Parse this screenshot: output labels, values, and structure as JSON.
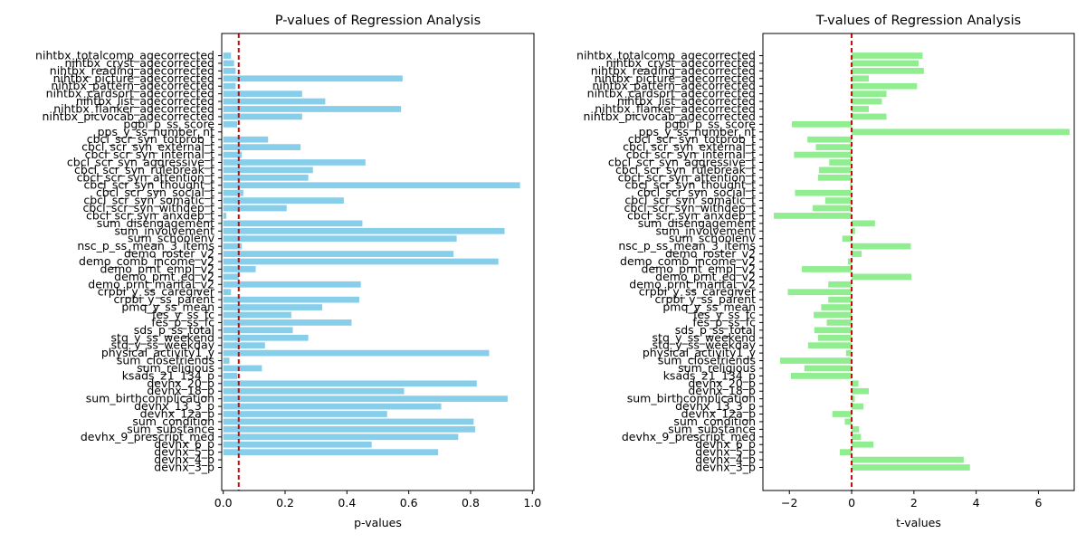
{
  "chart_data": [
    {
      "type": "bar",
      "orientation": "horizontal",
      "title": "P-values of Regression Analysis",
      "xlabel": "p-values",
      "ylabel": "",
      "xlim": [
        0.0,
        1.0
      ],
      "xticks": [
        "0.0",
        "0.2",
        "0.4",
        "0.6",
        "0.8",
        "1.0"
      ],
      "bar_color": "#87ceeb",
      "reference_line": {
        "value": 0.05,
        "color": "#dd0000",
        "style": "dashed"
      },
      "categories": [
        "nihtbx_totalcomp_agecorrected",
        "nihtbx_cryst_agecorrected",
        "nihtbx_reading_agecorrected",
        "nihtbx_picture_agecorrected",
        "nihtbx_pattern_agecorrected",
        "nihtbx_cardsort_agecorrected",
        "nihtbx_list_agecorrected",
        "nihtbx_flanker_agecorrected",
        "nihtbx_picvocab_agecorrected",
        "pgbi_p_ss_score",
        "pps_y_ss_number_nt",
        "cbcl_scr_syn_totprob_t",
        "cbcl_scr_syn_external_t",
        "cbcl_scr_syn_internal_t",
        "cbcl_scr_syn_aggressive_t",
        "cbcl_scr_syn_rulebreak_t",
        "cbcl_scr_syn_attention_t",
        "cbcl_scr_syn_thought_t",
        "cbcl_scr_syn_social_t",
        "cbcl_scr_syn_somatic_t",
        "cbcl_scr_syn_withdep_t",
        "cbcl_scr_syn_anxdep_t",
        "sum_disengagement",
        "sum_involvement",
        "sum_schoolenv",
        "nsc_p_ss_mean_3_items",
        "demo_roster_v2",
        "demo_comb_income_v2",
        "demo_prnt_empl_v2",
        "demo_prnt_ed_v2",
        "demo_prnt_marital_v2",
        "crpbi_y_ss_caregiver",
        "crpbi_y_ss_parent",
        "pmq_y_ss_mean",
        "fes_y_ss_fc",
        "fes_p_ss_fc",
        "sds_p_ss_total",
        "stq_y_ss_weekend",
        "stq_y_ss_weekday",
        "physical_activity1_y",
        "sum_closefriends",
        "sum_religious",
        "ksads_21_134_p",
        "devhx_20_p",
        "devhx_18_p",
        "sum_birthcomplication",
        "devhx_13_3_p",
        "devhx_12a_p",
        "sum_condition",
        "sum_substance",
        "devhx_9_prescript_med",
        "devhx_6_p",
        "devhx_5_p",
        "devhx_4_p",
        "devhx_3_p"
      ],
      "values": [
        0.025,
        0.035,
        0.04,
        0.58,
        0.04,
        0.255,
        0.33,
        0.575,
        0.255,
        0.045,
        0.0,
        0.145,
        0.25,
        0.06,
        0.46,
        0.29,
        0.275,
        0.96,
        0.065,
        0.39,
        0.205,
        0.01,
        0.45,
        0.91,
        0.755,
        0.06,
        0.745,
        0.89,
        0.105,
        0.05,
        0.445,
        0.025,
        0.44,
        0.32,
        0.22,
        0.415,
        0.225,
        0.275,
        0.135,
        0.86,
        0.02,
        0.125,
        0.045,
        0.82,
        0.585,
        0.92,
        0.705,
        0.53,
        0.81,
        0.815,
        0.76,
        0.48,
        0.695,
        0.0,
        0.0
      ]
    },
    {
      "type": "bar",
      "orientation": "horizontal",
      "title": "T-values of Regression Analysis",
      "xlabel": "t-values",
      "ylabel": "",
      "xlim": [
        -2.85,
        7.15
      ],
      "xticks": [
        "−2",
        "0",
        "2",
        "4",
        "6"
      ],
      "bar_color": "#90ee90",
      "reference_line": {
        "value": 0,
        "color": "#dd0000",
        "style": "dashed"
      },
      "categories": [
        "nihtbx_totalcomp_agecorrected",
        "nihtbx_cryst_agecorrected",
        "nihtbx_reading_agecorrected",
        "nihtbx_picture_agecorrected",
        "nihtbx_pattern_agecorrected",
        "nihtbx_cardsort_agecorrected",
        "nihtbx_list_agecorrected",
        "nihtbx_flanker_agecorrected",
        "nihtbx_picvocab_agecorrected",
        "pgbi_p_ss_score",
        "pps_y_ss_number_nt",
        "cbcl_scr_syn_totprob_t",
        "cbcl_scr_syn_external_t",
        "cbcl_scr_syn_internal_t",
        "cbcl_scr_syn_aggressive_t",
        "cbcl_scr_syn_rulebreak_t",
        "cbcl_scr_syn_attention_t",
        "cbcl_scr_syn_thought_t",
        "cbcl_scr_syn_social_t",
        "cbcl_scr_syn_somatic_t",
        "cbcl_scr_syn_withdep_t",
        "cbcl_scr_syn_anxdep_t",
        "sum_disengagement",
        "sum_involvement",
        "sum_schoolenv",
        "nsc_p_ss_mean_3_items",
        "demo_roster_v2",
        "demo_comb_income_v2",
        "demo_prnt_empl_v2",
        "demo_prnt_ed_v2",
        "demo_prnt_marital_v2",
        "crpbi_y_ss_caregiver",
        "crpbi_y_ss_parent",
        "pmq_y_ss_mean",
        "fes_y_ss_fc",
        "fes_p_ss_fc",
        "sds_p_ss_total",
        "stq_y_ss_weekend",
        "stq_y_ss_weekday",
        "physical_activity1_y",
        "sum_closefriends",
        "sum_religious",
        "ksads_21_134_p",
        "devhx_20_p",
        "devhx_18_p",
        "sum_birthcomplication",
        "devhx_13_3_p",
        "devhx_12a_p",
        "sum_condition",
        "sum_substance",
        "devhx_9_prescript_med",
        "devhx_6_p",
        "devhx_5_p",
        "devhx_4_p",
        "devhx_3_p"
      ],
      "values": [
        2.28,
        2.15,
        2.32,
        0.55,
        2.1,
        1.12,
        0.97,
        0.55,
        1.12,
        -1.92,
        7.0,
        -1.42,
        -1.15,
        -1.85,
        -0.72,
        -1.05,
        -1.08,
        -0.05,
        -1.82,
        -0.85,
        -1.25,
        -2.5,
        0.75,
        0.11,
        -0.3,
        1.9,
        0.32,
        -0.12,
        -1.6,
        1.92,
        -0.75,
        -2.05,
        -0.75,
        -0.98,
        -1.22,
        -0.8,
        -1.2,
        -1.08,
        -1.4,
        -0.18,
        -2.3,
        -1.52,
        -1.95,
        0.22,
        0.55,
        0.1,
        0.38,
        -0.62,
        -0.22,
        0.24,
        0.3,
        0.7,
        -0.38,
        3.6,
        3.8
      ]
    }
  ]
}
